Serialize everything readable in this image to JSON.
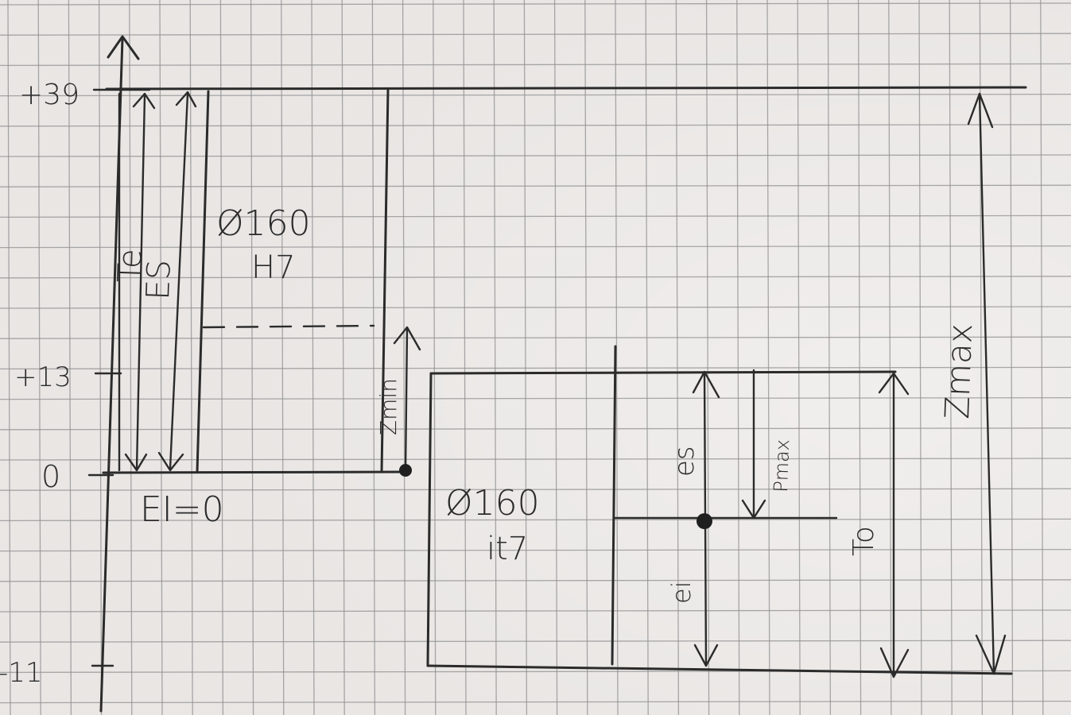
{
  "axis": {
    "ticks": [
      "+39",
      "+13",
      "0",
      "-11"
    ]
  },
  "hole": {
    "diameter": "Ø160",
    "grade": "H7",
    "tolerance_symbol": "Te",
    "upper_deviation_symbol": "ES",
    "lower_deviation_label": "EI=0"
  },
  "shaft": {
    "diameter": "Ø160",
    "grade": "it7",
    "tolerance_symbol": "To",
    "upper_deviation_symbol": "es",
    "lower_deviation_symbol": "ei"
  },
  "fit": {
    "min_label": "Zmin",
    "max_label": "Zmax",
    "pmax_label": "Pmax"
  },
  "colors": {
    "paper": "#e9e6e4",
    "grid": "#8f8f8f",
    "ink": "#2b2b2b"
  }
}
